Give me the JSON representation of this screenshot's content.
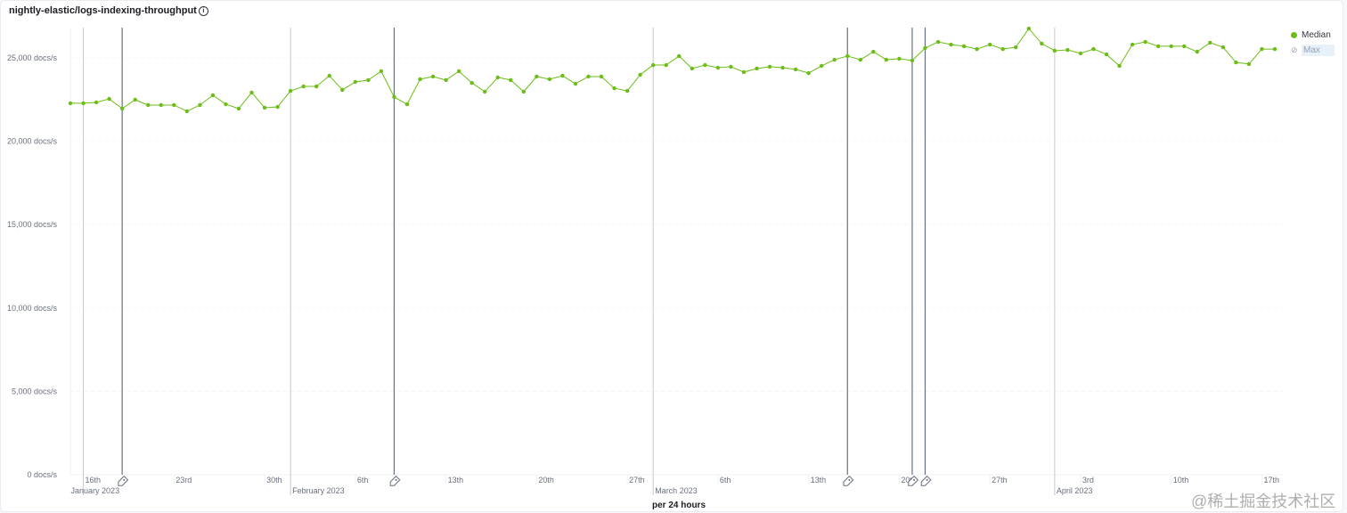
{
  "title": "nightly-elastic/logs-indexing-throughput",
  "info_icon": "info-circle-icon",
  "watermark": "@稀土掘金技术社区",
  "colors": {
    "median": "#6dbd18",
    "annotation": "#69707d",
    "month_line": "#c5c8ce"
  },
  "legend": [
    {
      "label": "Median",
      "visible": true,
      "icon": "filled-circle-icon"
    },
    {
      "label": "Max",
      "visible": false,
      "icon": "eye-closed-icon"
    }
  ],
  "chart_data": {
    "type": "line",
    "title": "nightly-elastic/logs-indexing-throughput",
    "xlabel": "per 24 hours",
    "ylabel": "",
    "ylim": [
      0,
      25000
    ],
    "y_ticks": [
      0,
      5000,
      10000,
      15000,
      20000,
      25000
    ],
    "y_tick_labels": [
      "0 docs/s",
      "5,000 docs/s",
      "10,000 docs/s",
      "15,000 docs/s",
      "20,000 docs/s",
      "25,000 docs/s"
    ],
    "x_range": [
      "2023-01-15",
      "2023-04-18"
    ],
    "x_ticks": [
      {
        "date": "2023-01-16",
        "label": "16th",
        "month_label": "January 2023"
      },
      {
        "date": "2023-01-23",
        "label": "23rd"
      },
      {
        "date": "2023-01-30",
        "label": "30th"
      },
      {
        "date": "2023-02-01",
        "label": "",
        "month_label": "February 2023"
      },
      {
        "date": "2023-02-06",
        "label": "6th"
      },
      {
        "date": "2023-02-13",
        "label": "13th"
      },
      {
        "date": "2023-02-20",
        "label": "20th"
      },
      {
        "date": "2023-02-27",
        "label": "27th"
      },
      {
        "date": "2023-03-01",
        "label": "",
        "month_label": "March 2023"
      },
      {
        "date": "2023-03-06",
        "label": "6th"
      },
      {
        "date": "2023-03-13",
        "label": "13th"
      },
      {
        "date": "2023-03-20",
        "label": "20th"
      },
      {
        "date": "2023-03-27",
        "label": "27th"
      },
      {
        "date": "2023-04-01",
        "label": "",
        "month_label": "April 2023"
      },
      {
        "date": "2023-04-03",
        "label": "3rd"
      },
      {
        "date": "2023-04-10",
        "label": "10th"
      },
      {
        "date": "2023-04-17",
        "label": "17th"
      }
    ],
    "grid": false,
    "legend_position": "top-right",
    "annotations": [
      "2023-01-19",
      "2023-02-09",
      "2023-03-16",
      "2023-03-21",
      "2023-03-22"
    ],
    "series": [
      {
        "name": "Median",
        "start_date": "2023-01-15",
        "interval": "1 day",
        "values": [
          22280,
          22280,
          22330,
          22540,
          21960,
          22490,
          22170,
          22170,
          22170,
          21800,
          22170,
          22760,
          22220,
          21960,
          22920,
          22010,
          22060,
          23020,
          23290,
          23290,
          23930,
          23080,
          23560,
          23670,
          24200,
          22650,
          22220,
          23720,
          23880,
          23670,
          24200,
          23500,
          22970,
          23830,
          23670,
          22970,
          23880,
          23720,
          23930,
          23450,
          23880,
          23880,
          23180,
          23020,
          23990,
          24570,
          24570,
          25110,
          24360,
          24570,
          24410,
          24470,
          24150,
          24360,
          24470,
          24410,
          24310,
          24090,
          24520,
          24890,
          25110,
          24890,
          25370,
          24890,
          24950,
          24840,
          25590,
          25960,
          25800,
          25700,
          25530,
          25800,
          25530,
          25640,
          26760,
          25860,
          25430,
          25480,
          25270,
          25530,
          25210,
          24520,
          25800,
          25960,
          25700,
          25700,
          25700,
          25370,
          25910,
          25640,
          24730,
          24630,
          25530,
          25530
        ]
      }
    ]
  }
}
